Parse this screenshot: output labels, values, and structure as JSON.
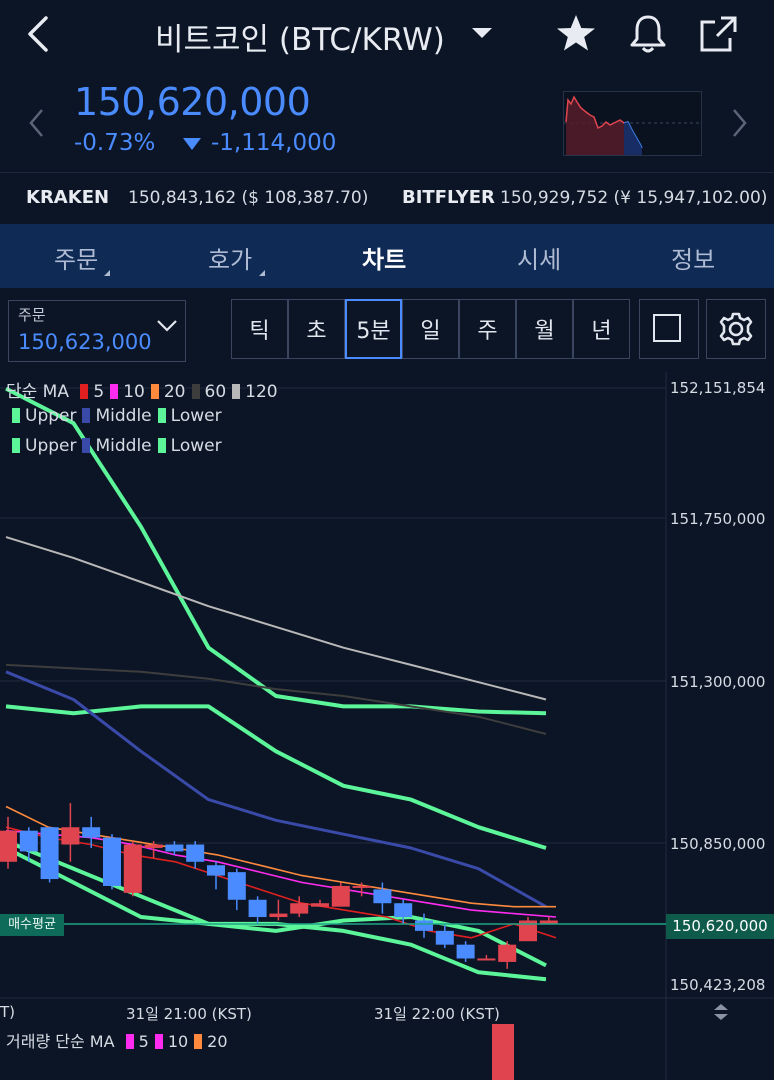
{
  "header": {
    "title": "비트코인 (BTC/KRW)",
    "back_icon": "chevron-left-icon",
    "icons": [
      "star-icon",
      "bell-icon",
      "share-icon"
    ]
  },
  "price": {
    "current": "150,620,000",
    "change_pct": "-0.73%",
    "change_abs": "-1,114,000",
    "color_down": "#4a8cff",
    "color_up": "#e0454f"
  },
  "exchanges": [
    {
      "name": "KRAKEN",
      "value": "150,843,162 ($ 108,387.70)"
    },
    {
      "name": "BITFLYER",
      "value": "150,929,752 (¥ 15,947,102.00)"
    }
  ],
  "tabs": [
    {
      "label": "주문",
      "active": false,
      "has_menu": true
    },
    {
      "label": "호가",
      "active": false,
      "has_menu": true
    },
    {
      "label": "차트",
      "active": true,
      "has_menu": false
    },
    {
      "label": "시세",
      "active": false,
      "has_menu": false
    },
    {
      "label": "정보",
      "active": false,
      "has_menu": false
    }
  ],
  "order_select": {
    "label": "주문",
    "value": "150,623,000"
  },
  "intervals": [
    {
      "label": "틱",
      "active": false
    },
    {
      "label": "초",
      "active": false
    },
    {
      "label": "5분",
      "active": true
    },
    {
      "label": "일",
      "active": false
    },
    {
      "label": "주",
      "active": false
    },
    {
      "label": "월",
      "active": false
    },
    {
      "label": "년",
      "active": false
    }
  ],
  "legend": {
    "ma_title": "단순 MA",
    "ma_items": [
      {
        "label": "5",
        "color": "#e02020"
      },
      {
        "label": "10",
        "color": "#ff2cf0"
      },
      {
        "label": "20",
        "color": "#ff8a3d"
      },
      {
        "label": "60",
        "color": "#3d3d3d"
      },
      {
        "label": "120",
        "color": "#b8b8b8"
      }
    ],
    "bb_rows": [
      [
        {
          "label": "Upper",
          "color": "#5df59a"
        },
        {
          "label": "Middle",
          "color": "#3a4aa8"
        },
        {
          "label": "Lower",
          "color": "#5df59a"
        }
      ],
      [
        {
          "label": "Upper",
          "color": "#5df59a"
        },
        {
          "label": "Middle",
          "color": "#3a4aa8"
        },
        {
          "label": "Lower",
          "color": "#5df59a"
        }
      ]
    ]
  },
  "y_axis": {
    "labels": [
      "152,151,854",
      "151,750,000",
      "151,300,000",
      "150,850,000",
      "150,423,208"
    ],
    "current_label": "150,620,000"
  },
  "avg_buy_label": "매수평균",
  "x_axis": {
    "labels": [
      "T)",
      "31일 21:00 (KST)",
      "31일 22:00 (KST)"
    ]
  },
  "volume_legend": {
    "title": "거래량 단순 MA",
    "items": [
      {
        "label": "5",
        "color": "#ff2cf0"
      },
      {
        "label": "10",
        "color": "#ff2cf0"
      },
      {
        "label": "20",
        "color": "#ff8a3d"
      }
    ]
  },
  "chart_data": {
    "type": "candlestick",
    "interval": "5분",
    "ylim": [
      150423208,
      152151854
    ],
    "candles": [
      {
        "o": 150780000,
        "h": 150910000,
        "l": 150760000,
        "c": 150870000
      },
      {
        "o": 150870000,
        "h": 150880000,
        "l": 150780000,
        "c": 150810000
      },
      {
        "o": 150880000,
        "h": 150880000,
        "l": 150720000,
        "c": 150730000
      },
      {
        "o": 150830000,
        "h": 150950000,
        "l": 150780000,
        "c": 150880000
      },
      {
        "o": 150880000,
        "h": 150910000,
        "l": 150820000,
        "c": 150850000
      },
      {
        "o": 150850000,
        "h": 150860000,
        "l": 150700000,
        "c": 150710000
      },
      {
        "o": 150690000,
        "h": 150840000,
        "l": 150680000,
        "c": 150830000
      },
      {
        "o": 150820000,
        "h": 150840000,
        "l": 150790000,
        "c": 150830000
      },
      {
        "o": 150830000,
        "h": 150840000,
        "l": 150800000,
        "c": 150810000
      },
      {
        "o": 150830000,
        "h": 150840000,
        "l": 150760000,
        "c": 150780000
      },
      {
        "o": 150770000,
        "h": 150780000,
        "l": 150700000,
        "c": 150740000
      },
      {
        "o": 150750000,
        "h": 150760000,
        "l": 150640000,
        "c": 150670000
      },
      {
        "o": 150670000,
        "h": 150680000,
        "l": 150600000,
        "c": 150620000
      },
      {
        "o": 150620000,
        "h": 150670000,
        "l": 150610000,
        "c": 150630000
      },
      {
        "o": 150630000,
        "h": 150680000,
        "l": 150620000,
        "c": 150660000
      },
      {
        "o": 150650000,
        "h": 150670000,
        "l": 150650000,
        "c": 150660000
      },
      {
        "o": 150650000,
        "h": 150720000,
        "l": 150650000,
        "c": 150710000
      },
      {
        "o": 150710000,
        "h": 150720000,
        "l": 150680000,
        "c": 150710000
      },
      {
        "o": 150700000,
        "h": 150720000,
        "l": 150630000,
        "c": 150660000
      },
      {
        "o": 150660000,
        "h": 150670000,
        "l": 150600000,
        "c": 150620000
      },
      {
        "o": 150610000,
        "h": 150630000,
        "l": 150560000,
        "c": 150580000
      },
      {
        "o": 150580000,
        "h": 150600000,
        "l": 150530000,
        "c": 150540000
      },
      {
        "o": 150540000,
        "h": 150550000,
        "l": 150490000,
        "c": 150500000
      },
      {
        "o": 150500000,
        "h": 150510000,
        "l": 150500000,
        "c": 150500000
      },
      {
        "o": 150490000,
        "h": 150550000,
        "l": 150470000,
        "c": 150540000
      },
      {
        "o": 150550000,
        "h": 150620000,
        "l": 150550000,
        "c": 150610000
      },
      {
        "o": 150600000,
        "h": 150620000,
        "l": 150600000,
        "c": 150610000
      }
    ],
    "ma_lines": [
      {
        "name": "5",
        "color": "#e02020",
        "points": [
          150880000,
          150850000,
          150830000,
          150800000,
          150780000,
          150740000,
          150700000,
          150660000,
          150640000,
          150620000,
          150580000,
          150560000,
          150600000,
          150560000
        ]
      },
      {
        "name": "10",
        "color": "#ff2cf0",
        "points": [
          150870000,
          150860000,
          150850000,
          150830000,
          150800000,
          150780000,
          150750000,
          150720000,
          150700000,
          150680000,
          150660000,
          150640000,
          150630000,
          150620000
        ]
      },
      {
        "name": "20",
        "color": "#ff8a3d",
        "points": [
          150940000,
          150880000,
          150860000,
          150840000,
          150820000,
          150800000,
          150770000,
          150740000,
          150720000,
          150700000,
          150680000,
          150660000,
          150650000,
          150650000
        ]
      },
      {
        "name": "60",
        "color": "#3d3d3d",
        "points": [
          151350000,
          151340000,
          151330000,
          151310000,
          151280000,
          151260000,
          151230000,
          151200000,
          151150000
        ]
      },
      {
        "name": "120",
        "color": "#b8b8b8",
        "points": [
          151720000,
          151660000,
          151590000,
          151520000,
          151460000,
          151400000,
          151350000,
          151300000,
          151250000
        ]
      }
    ],
    "bollinger": [
      {
        "name": "BB1 Upper",
        "color": "#5df59a",
        "points": [
          152150000,
          152050000,
          151750000,
          151400000,
          151260000,
          151230000,
          151230000,
          151215000,
          151210000
        ]
      },
      {
        "name": "BB1 Lower",
        "color": "#5df59a",
        "points": [
          150820000,
          150720000,
          150620000,
          150600000,
          150600000,
          150580000,
          150540000,
          150460000,
          150440000
        ]
      },
      {
        "name": "BB2 Upper",
        "color": "#5df59a",
        "points": [
          151230000,
          151210000,
          151230000,
          151230000,
          151100000,
          151000000,
          150960000,
          150880000,
          150820000
        ]
      },
      {
        "name": "BB2 Lower",
        "color": "#5df59a",
        "points": [
          150840000,
          150760000,
          150680000,
          150600000,
          150580000,
          150610000,
          150620000,
          150580000,
          150480000
        ]
      },
      {
        "name": "BB Middle",
        "color": "#3a4aa8",
        "points": [
          151330000,
          151250000,
          151100000,
          150960000,
          150900000,
          150860000,
          150820000,
          150760000,
          150650000
        ]
      }
    ]
  }
}
